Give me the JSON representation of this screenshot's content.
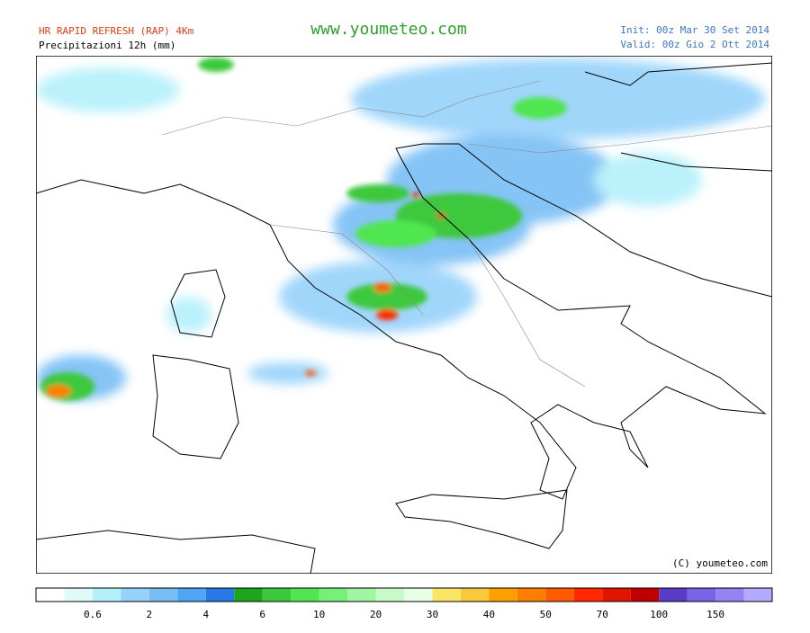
{
  "header": {
    "model": "HR RAPID REFRESH (RAP) 4Km",
    "product": "Precipitazioni 12h (mm)",
    "site": "www.youmeteo.com",
    "init": "Init: 00z Mar 30 Set 2014",
    "valid": "Valid: 00z Gio 2 Ott 2014"
  },
  "copyright": "(C) youmeteo.com",
  "legend": {
    "colors": [
      "#ffffff",
      "#e0fafa",
      "#b4f0fa",
      "#96d2fa",
      "#78bef5",
      "#50a5f5",
      "#2878e6",
      "#1ea51e",
      "#3cc83c",
      "#50e650",
      "#78f078",
      "#a0f5a0",
      "#c8fac8",
      "#e6ffe6",
      "#fae664",
      "#fac83c",
      "#ffa000",
      "#ff7d00",
      "#ff5a00",
      "#ff2800",
      "#e11400",
      "#c00000",
      "#5a3cc8",
      "#7864e6",
      "#9682f0",
      "#b4aaff"
    ],
    "labels": [
      "0.6",
      "2",
      "4",
      "6",
      "10",
      "20",
      "30",
      "40",
      "50",
      "70",
      "100",
      "150"
    ]
  }
}
